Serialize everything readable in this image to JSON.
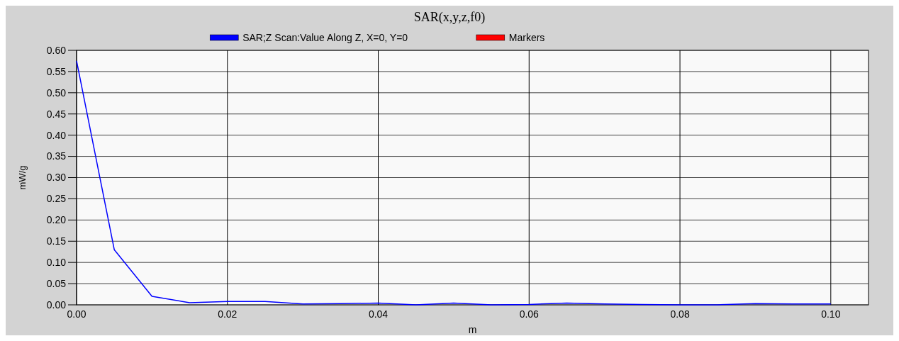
{
  "chart_data": {
    "type": "line",
    "title": "SAR(x,y,z,f0)",
    "xlabel": "m",
    "ylabel": "mW/g",
    "x": [
      0,
      0.005,
      0.01,
      0.015,
      0.02,
      0.025,
      0.03,
      0.035,
      0.04,
      0.045,
      0.05,
      0.055,
      0.06,
      0.065,
      0.07,
      0.075,
      0.08,
      0.085,
      0.09,
      0.095,
      0.1
    ],
    "series": [
      {
        "name": "SAR;Z Scan:Value Along Z, X=0, Y=0",
        "color": "#0000ff",
        "values": [
          0.575,
          0.13,
          0.02,
          0.005,
          0.008,
          0.008,
          0.002,
          0.003,
          0.004,
          0,
          0.004,
          0,
          0.001,
          0.004,
          0.002,
          0.001,
          0,
          0,
          0.003,
          0.002,
          0.002
        ]
      },
      {
        "name": "Markers",
        "color": "#ff0000",
        "values": [
          null,
          null,
          null,
          null,
          null,
          null,
          null,
          null,
          null,
          null,
          null,
          null,
          null,
          null,
          null,
          null,
          null,
          null,
          null,
          null,
          null
        ]
      }
    ],
    "xlim": [
      0,
      0.105
    ],
    "xticks": [
      {
        "value": 0,
        "label": "0.00"
      },
      {
        "value": 0.02,
        "label": "0.02"
      },
      {
        "value": 0.04,
        "label": "0.04"
      },
      {
        "value": 0.06,
        "label": "0.06"
      },
      {
        "value": 0.08,
        "label": "0.08"
      },
      {
        "value": 0.1,
        "label": "0.10"
      }
    ],
    "ylim": [
      0,
      0.6
    ],
    "yticks": [
      {
        "value": 0,
        "label": "0.00"
      },
      {
        "value": 0.05,
        "label": "0.05"
      },
      {
        "value": 0.1,
        "label": "0.10"
      },
      {
        "value": 0.15,
        "label": "0.15"
      },
      {
        "value": 0.2,
        "label": "0.20"
      },
      {
        "value": 0.25,
        "label": "0.25"
      },
      {
        "value": 0.3,
        "label": "0.30"
      },
      {
        "value": 0.35,
        "label": "0.35"
      },
      {
        "value": 0.4,
        "label": "0.40"
      },
      {
        "value": 0.45,
        "label": "0.45"
      },
      {
        "value": 0.5,
        "label": "0.50"
      },
      {
        "value": 0.55,
        "label": "0.55"
      },
      {
        "value": 0.6,
        "label": "0.60"
      }
    ],
    "grid": true,
    "legend": "top",
    "marker": "none",
    "line_style": "solid"
  }
}
